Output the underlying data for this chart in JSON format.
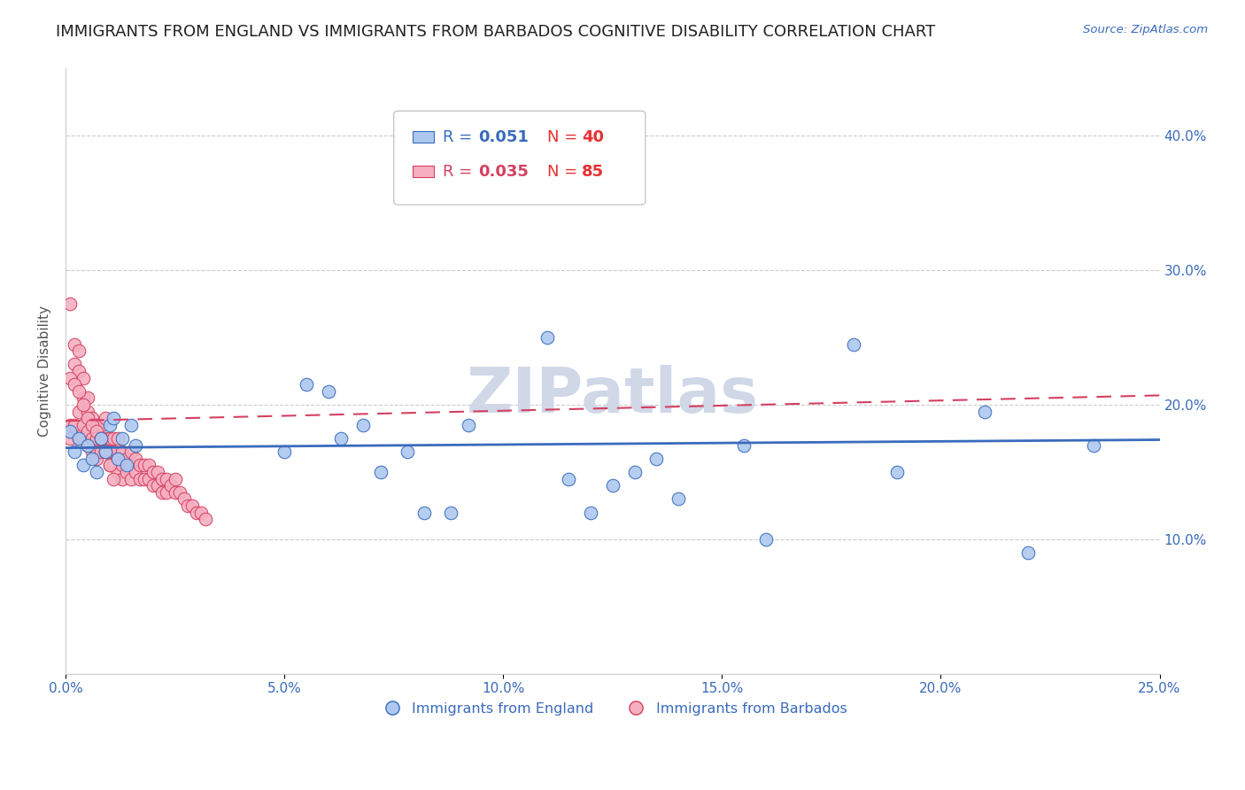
{
  "title": "IMMIGRANTS FROM ENGLAND VS IMMIGRANTS FROM BARBADOS COGNITIVE DISABILITY CORRELATION CHART",
  "source": "Source: ZipAtlas.com",
  "ylabel": "Cognitive Disability",
  "xlim": [
    0.0,
    0.25
  ],
  "ylim": [
    0.0,
    0.45
  ],
  "xticks": [
    0.0,
    0.05,
    0.1,
    0.15,
    0.2,
    0.25
  ],
  "yticks": [
    0.1,
    0.2,
    0.3,
    0.4
  ],
  "right_ytick_labels": [
    "10.0%",
    "20.0%",
    "30.0%",
    "40.0%"
  ],
  "england_color": "#adc8f0",
  "barbados_color": "#f5afc0",
  "england_line_color": "#3a6bbc",
  "barbados_line_color": "#d44060",
  "england_R": 0.051,
  "england_N": 40,
  "barbados_R": 0.035,
  "barbados_N": 85,
  "background_color": "#ffffff",
  "grid_color": "#cccccc",
  "watermark_text": "ZIPatlas",
  "watermark_color": "#d0d8e8",
  "title_fontsize": 13,
  "axis_label_fontsize": 11,
  "tick_fontsize": 11,
  "legend_fontsize": 13,
  "england_scatter_x": [
    0.001,
    0.002,
    0.003,
    0.004,
    0.005,
    0.006,
    0.007,
    0.008,
    0.009,
    0.01,
    0.011,
    0.012,
    0.013,
    0.014,
    0.015,
    0.016,
    0.055,
    0.06,
    0.063,
    0.068,
    0.072,
    0.078,
    0.082,
    0.088,
    0.092,
    0.11,
    0.115,
    0.12,
    0.125,
    0.13,
    0.135,
    0.14,
    0.155,
    0.16,
    0.18,
    0.19,
    0.21,
    0.22,
    0.235,
    0.05
  ],
  "england_scatter_y": [
    0.18,
    0.165,
    0.175,
    0.155,
    0.17,
    0.16,
    0.15,
    0.175,
    0.165,
    0.185,
    0.19,
    0.16,
    0.175,
    0.155,
    0.185,
    0.17,
    0.215,
    0.21,
    0.175,
    0.185,
    0.15,
    0.165,
    0.12,
    0.12,
    0.185,
    0.25,
    0.145,
    0.12,
    0.14,
    0.15,
    0.16,
    0.13,
    0.17,
    0.1,
    0.245,
    0.15,
    0.195,
    0.09,
    0.17,
    0.165
  ],
  "barbados_scatter_x": [
    0.001,
    0.001,
    0.001,
    0.002,
    0.002,
    0.002,
    0.003,
    0.003,
    0.003,
    0.003,
    0.004,
    0.004,
    0.004,
    0.004,
    0.005,
    0.005,
    0.005,
    0.005,
    0.006,
    0.006,
    0.006,
    0.007,
    0.007,
    0.007,
    0.007,
    0.008,
    0.008,
    0.008,
    0.009,
    0.009,
    0.009,
    0.01,
    0.01,
    0.01,
    0.011,
    0.011,
    0.011,
    0.012,
    0.012,
    0.012,
    0.013,
    0.013,
    0.013,
    0.014,
    0.014,
    0.015,
    0.015,
    0.015,
    0.016,
    0.016,
    0.017,
    0.017,
    0.018,
    0.018,
    0.019,
    0.019,
    0.02,
    0.02,
    0.021,
    0.021,
    0.022,
    0.022,
    0.023,
    0.023,
    0.024,
    0.025,
    0.025,
    0.026,
    0.027,
    0.028,
    0.029,
    0.03,
    0.031,
    0.032,
    0.001,
    0.002,
    0.003,
    0.004,
    0.005,
    0.006,
    0.007,
    0.008,
    0.009,
    0.01,
    0.011
  ],
  "barbados_scatter_y": [
    0.275,
    0.185,
    0.175,
    0.245,
    0.23,
    0.185,
    0.24,
    0.225,
    0.195,
    0.175,
    0.22,
    0.205,
    0.185,
    0.175,
    0.205,
    0.195,
    0.18,
    0.17,
    0.19,
    0.175,
    0.165,
    0.185,
    0.175,
    0.165,
    0.16,
    0.185,
    0.175,
    0.165,
    0.19,
    0.175,
    0.165,
    0.175,
    0.165,
    0.155,
    0.175,
    0.165,
    0.155,
    0.175,
    0.16,
    0.15,
    0.165,
    0.155,
    0.145,
    0.16,
    0.15,
    0.165,
    0.155,
    0.145,
    0.16,
    0.15,
    0.155,
    0.145,
    0.155,
    0.145,
    0.155,
    0.145,
    0.15,
    0.14,
    0.15,
    0.14,
    0.145,
    0.135,
    0.145,
    0.135,
    0.14,
    0.145,
    0.135,
    0.135,
    0.13,
    0.125,
    0.125,
    0.12,
    0.12,
    0.115,
    0.22,
    0.215,
    0.21,
    0.2,
    0.19,
    0.185,
    0.18,
    0.175,
    0.165,
    0.155,
    0.145
  ]
}
